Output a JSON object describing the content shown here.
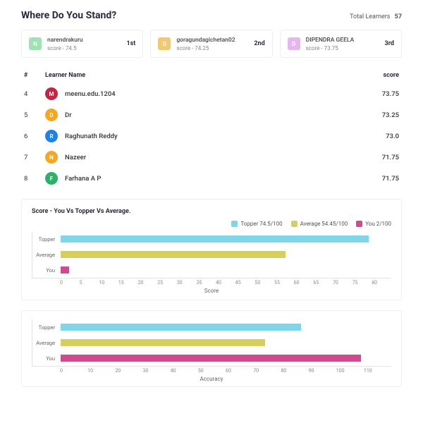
{
  "header": {
    "title": "Where Do You Stand?",
    "total_label": "Total Learners",
    "total_value": "57"
  },
  "podium": [
    {
      "initial": "N",
      "bg": "#9fe3b5",
      "name": "narendrakuru",
      "score_label": "score - 74.5",
      "rank": "1st"
    },
    {
      "initial": "G",
      "bg": "#f1c972",
      "name": "goragundagichetan02",
      "score_label": "score - 74.25",
      "rank": "2nd"
    },
    {
      "initial": "D",
      "bg": "#e7b6f0",
      "name": "DIPENDRA GEELA",
      "score_label": "score - 73.75",
      "rank": "3rd"
    }
  ],
  "table": {
    "head_rank": "#",
    "head_name": "Learner Name",
    "head_score": "score",
    "rows": [
      {
        "rank": "4",
        "initial": "M",
        "color": "#c72442",
        "name": "meenu.edu.1204",
        "score": "73.75"
      },
      {
        "rank": "5",
        "initial": "D",
        "color": "#f5a623",
        "name": "Dr",
        "score": "73.25"
      },
      {
        "rank": "6",
        "initial": "R",
        "color": "#1f82e8",
        "name": "Raghunath Reddy",
        "score": "73.0"
      },
      {
        "rank": "7",
        "initial": "N",
        "color": "#f5a623",
        "name": "Nazeer",
        "score": "71.75"
      },
      {
        "rank": "8",
        "initial": "F",
        "color": "#2cb06b",
        "name": "Farhana A P",
        "score": "71.75"
      }
    ]
  },
  "chart1": {
    "title": "Score - You Vs Topper Vs Average.",
    "colors": {
      "topper": "#7ed6e8",
      "average": "#d6cf5e",
      "you": "#d04b8d"
    },
    "legend": {
      "topper": "Topper 74.5/100",
      "average": "Average 54.45/100",
      "you": "You 2/100"
    },
    "xmax": 80,
    "xticks": [
      "0",
      "5",
      "10",
      "15",
      "20",
      "25",
      "30",
      "35",
      "40",
      "45",
      "50",
      "55",
      "60",
      "65",
      "70",
      "75",
      "80"
    ],
    "xlabel": "Score",
    "bars": [
      {
        "label": "Topper",
        "value": 74.5,
        "color": "#7ed6e8"
      },
      {
        "label": "Average",
        "value": 54.45,
        "color": "#d6cf5e"
      },
      {
        "label": "You",
        "value": 2,
        "color": "#d04b8d"
      }
    ]
  },
  "chart2": {
    "xmax": 110,
    "xlabel": "Accuracy",
    "xticks": [
      "0",
      "10",
      "20",
      "30",
      "40",
      "50",
      "60",
      "70",
      "80",
      "90",
      "100",
      "110"
    ],
    "bars": [
      {
        "label": "Topper",
        "value": 80,
        "color": "#7ed6e8"
      },
      {
        "label": "Average",
        "value": 68,
        "color": "#d6cf5e"
      },
      {
        "label": "You",
        "value": 100,
        "color": "#d04b8d"
      }
    ]
  }
}
